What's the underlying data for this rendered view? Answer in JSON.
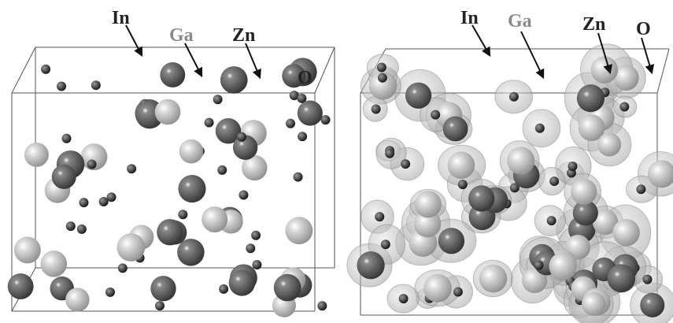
{
  "panels": [
    {
      "labels": [
        "In",
        "Ga",
        "Zn",
        "O"
      ]
    },
    {
      "labels": [
        "In",
        "Ga",
        "Zn",
        "O"
      ]
    }
  ]
}
